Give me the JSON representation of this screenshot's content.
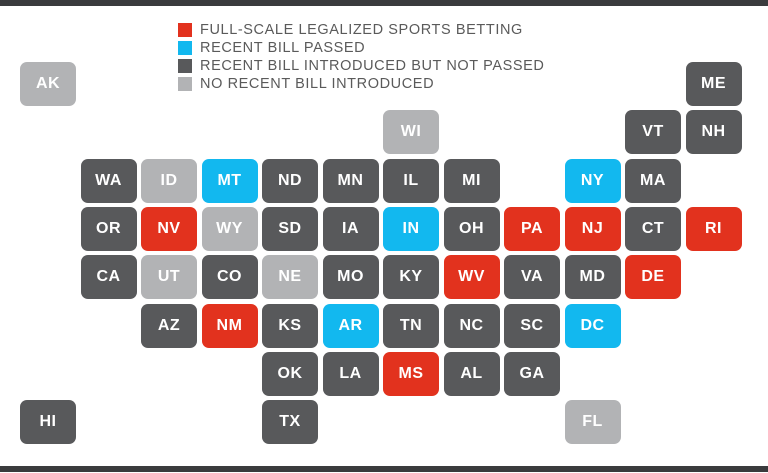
{
  "colors": {
    "legalized": "#e2321e",
    "passed": "#12b8ef",
    "introduced": "#58595b",
    "none": "#b2b3b5",
    "rule": "#3a3b3d",
    "legend_text": "#5a5a5a",
    "tile_text": "#ffffff"
  },
  "legend": [
    {
      "status": "legalized",
      "label": "FULL-SCALE LEGALIZED SPORTS BETTING"
    },
    {
      "status": "passed",
      "label": "RECENT BILL PASSED"
    },
    {
      "status": "introduced",
      "label": "RECENT BILL INTRODUCED BUT NOT PASSED"
    },
    {
      "status": "none",
      "label": "NO RECENT BILL INTRODUCED"
    }
  ],
  "states": [
    {
      "abbr": "AK",
      "status": "none",
      "row": 0,
      "col": 0
    },
    {
      "abbr": "ME",
      "status": "introduced",
      "row": 0,
      "col": 11
    },
    {
      "abbr": "WI",
      "status": "none",
      "row": 1,
      "col": 6
    },
    {
      "abbr": "VT",
      "status": "introduced",
      "row": 1,
      "col": 10
    },
    {
      "abbr": "NH",
      "status": "introduced",
      "row": 1,
      "col": 11
    },
    {
      "abbr": "WA",
      "status": "introduced",
      "row": 2,
      "col": 1
    },
    {
      "abbr": "ID",
      "status": "none",
      "row": 2,
      "col": 2
    },
    {
      "abbr": "MT",
      "status": "passed",
      "row": 2,
      "col": 3
    },
    {
      "abbr": "ND",
      "status": "introduced",
      "row": 2,
      "col": 4
    },
    {
      "abbr": "MN",
      "status": "introduced",
      "row": 2,
      "col": 5
    },
    {
      "abbr": "IL",
      "status": "introduced",
      "row": 2,
      "col": 6
    },
    {
      "abbr": "MI",
      "status": "introduced",
      "row": 2,
      "col": 7
    },
    {
      "abbr": "NY",
      "status": "passed",
      "row": 2,
      "col": 9
    },
    {
      "abbr": "MA",
      "status": "introduced",
      "row": 2,
      "col": 10
    },
    {
      "abbr": "OR",
      "status": "introduced",
      "row": 3,
      "col": 1
    },
    {
      "abbr": "NV",
      "status": "legalized",
      "row": 3,
      "col": 2
    },
    {
      "abbr": "WY",
      "status": "none",
      "row": 3,
      "col": 3
    },
    {
      "abbr": "SD",
      "status": "introduced",
      "row": 3,
      "col": 4
    },
    {
      "abbr": "IA",
      "status": "introduced",
      "row": 3,
      "col": 5
    },
    {
      "abbr": "IN",
      "status": "passed",
      "row": 3,
      "col": 6
    },
    {
      "abbr": "OH",
      "status": "introduced",
      "row": 3,
      "col": 7
    },
    {
      "abbr": "PA",
      "status": "legalized",
      "row": 3,
      "col": 8
    },
    {
      "abbr": "NJ",
      "status": "legalized",
      "row": 3,
      "col": 9
    },
    {
      "abbr": "CT",
      "status": "introduced",
      "row": 3,
      "col": 10
    },
    {
      "abbr": "RI",
      "status": "legalized",
      "row": 3,
      "col": 11
    },
    {
      "abbr": "CA",
      "status": "introduced",
      "row": 4,
      "col": 1
    },
    {
      "abbr": "UT",
      "status": "none",
      "row": 4,
      "col": 2
    },
    {
      "abbr": "CO",
      "status": "introduced",
      "row": 4,
      "col": 3
    },
    {
      "abbr": "NE",
      "status": "none",
      "row": 4,
      "col": 4
    },
    {
      "abbr": "MO",
      "status": "introduced",
      "row": 4,
      "col": 5
    },
    {
      "abbr": "KY",
      "status": "introduced",
      "row": 4,
      "col": 6
    },
    {
      "abbr": "WV",
      "status": "legalized",
      "row": 4,
      "col": 7
    },
    {
      "abbr": "VA",
      "status": "introduced",
      "row": 4,
      "col": 8
    },
    {
      "abbr": "MD",
      "status": "introduced",
      "row": 4,
      "col": 9
    },
    {
      "abbr": "DE",
      "status": "legalized",
      "row": 4,
      "col": 10
    },
    {
      "abbr": "AZ",
      "status": "introduced",
      "row": 5,
      "col": 2
    },
    {
      "abbr": "NM",
      "status": "legalized",
      "row": 5,
      "col": 3
    },
    {
      "abbr": "KS",
      "status": "introduced",
      "row": 5,
      "col": 4
    },
    {
      "abbr": "AR",
      "status": "passed",
      "row": 5,
      "col": 5
    },
    {
      "abbr": "TN",
      "status": "introduced",
      "row": 5,
      "col": 6
    },
    {
      "abbr": "NC",
      "status": "introduced",
      "row": 5,
      "col": 7
    },
    {
      "abbr": "SC",
      "status": "introduced",
      "row": 5,
      "col": 8
    },
    {
      "abbr": "DC",
      "status": "passed",
      "row": 5,
      "col": 9
    },
    {
      "abbr": "OK",
      "status": "introduced",
      "row": 6,
      "col": 4
    },
    {
      "abbr": "LA",
      "status": "introduced",
      "row": 6,
      "col": 5
    },
    {
      "abbr": "MS",
      "status": "legalized",
      "row": 6,
      "col": 6
    },
    {
      "abbr": "AL",
      "status": "introduced",
      "row": 6,
      "col": 7
    },
    {
      "abbr": "GA",
      "status": "introduced",
      "row": 6,
      "col": 8
    },
    {
      "abbr": "HI",
      "status": "introduced",
      "row": 7,
      "col": 0
    },
    {
      "abbr": "TX",
      "status": "introduced",
      "row": 7,
      "col": 4
    },
    {
      "abbr": "FL",
      "status": "none",
      "row": 7,
      "col": 9
    }
  ]
}
